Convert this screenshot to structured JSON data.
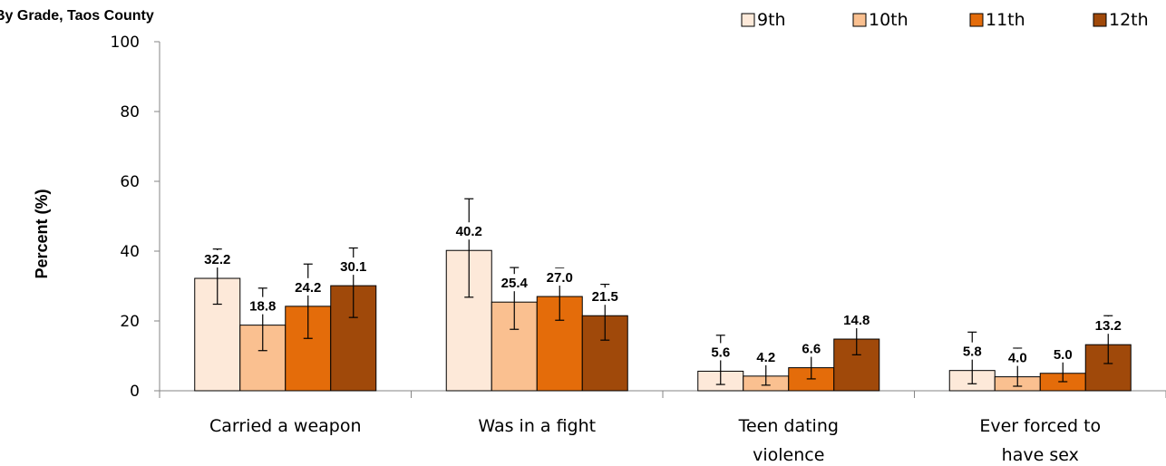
{
  "chart_data": {
    "type": "bar",
    "title": "By Grade, Taos County",
    "ylabel": "Percent (%)",
    "xlabel": "",
    "ylim": [
      0,
      100
    ],
    "yticks": [
      0,
      20,
      40,
      60,
      80,
      100
    ],
    "grid": false,
    "legend_position": "top-right",
    "categories": [
      [
        "Carried a weapon"
      ],
      [
        "Was in a fight"
      ],
      [
        "Teen dating",
        "violence"
      ],
      [
        "Ever forced to",
        "have sex"
      ]
    ],
    "series": [
      {
        "name": "9th",
        "color": "#fde9d9",
        "values": [
          32.2,
          40.2,
          5.6,
          5.8
        ],
        "err_low": [
          24.8,
          26.8,
          1.8,
          2.0
        ],
        "err_high": [
          40.6,
          55.0,
          15.9,
          16.8
        ]
      },
      {
        "name": "10th",
        "color": "#fac090",
        "values": [
          18.8,
          25.4,
          4.2,
          4.0
        ],
        "err_low": [
          11.5,
          17.6,
          1.6,
          1.3
        ],
        "err_high": [
          29.4,
          35.3,
          10.7,
          12.2
        ]
      },
      {
        "name": "11th",
        "color": "#e46c0a",
        "values": [
          24.2,
          27.0,
          6.6,
          5.0
        ],
        "err_low": [
          15.0,
          20.2,
          3.4,
          2.6
        ],
        "err_high": [
          36.3,
          35.1,
          11.9,
          9.9
        ]
      },
      {
        "name": "12th",
        "color": "#a0490a",
        "values": [
          30.1,
          21.5,
          14.8,
          13.2
        ],
        "err_low": [
          21.0,
          14.5,
          10.3,
          7.8
        ],
        "err_high": [
          40.9,
          30.5,
          20.4,
          21.5
        ]
      }
    ]
  }
}
